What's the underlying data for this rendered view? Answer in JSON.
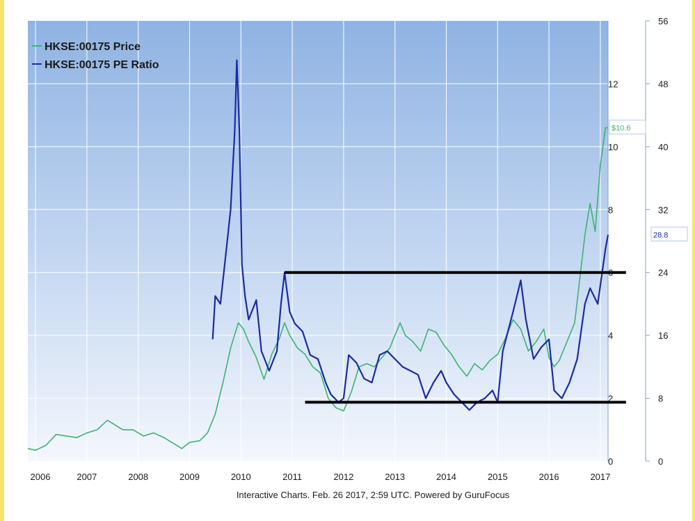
{
  "chart_data": {
    "type": "line",
    "x_ticks": [
      "2006",
      "2007",
      "2008",
      "2009",
      "2010",
      "2011",
      "2012",
      "2013",
      "2014",
      "2015",
      "2016",
      "2017"
    ],
    "inner_y_ticks": [
      "0",
      "2",
      "4",
      "6",
      "8",
      "10",
      "12"
    ],
    "right_y_ticks": [
      "0",
      "8",
      "16",
      "24",
      "32",
      "40",
      "48",
      "56"
    ],
    "price_ylim": [
      0,
      14
    ],
    "pe_ylim": [
      0,
      56
    ],
    "xlim": [
      2005.85,
      2017.15
    ],
    "grid": true,
    "legend_position": "top-left",
    "series": [
      {
        "name": "HKSE:00175 Price",
        "color": "#3cb371",
        "axis": "price",
        "x": [
          2005.85,
          2006.0,
          2006.2,
          2006.4,
          2006.6,
          2006.8,
          2007.0,
          2007.2,
          2007.4,
          2007.5,
          2007.7,
          2007.9,
          2008.1,
          2008.3,
          2008.5,
          2008.7,
          2008.85,
          2009.0,
          2009.2,
          2009.35,
          2009.5,
          2009.65,
          2009.8,
          2009.95,
          2010.05,
          2010.15,
          2010.3,
          2010.45,
          2010.6,
          2010.75,
          2010.85,
          2010.95,
          2011.1,
          2011.25,
          2011.4,
          2011.55,
          2011.7,
          2011.85,
          2012.0,
          2012.15,
          2012.3,
          2012.45,
          2012.6,
          2012.75,
          2012.9,
          2013.0,
          2013.1,
          2013.2,
          2013.35,
          2013.5,
          2013.65,
          2013.8,
          2013.95,
          2014.1,
          2014.25,
          2014.4,
          2014.55,
          2014.7,
          2014.85,
          2015.0,
          2015.15,
          2015.3,
          2015.45,
          2015.6,
          2015.75,
          2015.9,
          2016.0,
          2016.1,
          2016.2,
          2016.35,
          2016.5,
          2016.6,
          2016.7,
          2016.8,
          2016.9,
          2017.0,
          2017.1,
          2017.15
        ],
        "values": [
          0.4,
          0.35,
          0.5,
          0.85,
          0.8,
          0.75,
          0.9,
          1.0,
          1.3,
          1.2,
          1.0,
          1.0,
          0.8,
          0.9,
          0.75,
          0.55,
          0.4,
          0.6,
          0.65,
          0.9,
          1.5,
          2.5,
          3.6,
          4.4,
          4.2,
          3.8,
          3.3,
          2.6,
          3.4,
          3.9,
          4.4,
          4.0,
          3.6,
          3.4,
          3.0,
          2.8,
          2.0,
          1.7,
          1.6,
          2.2,
          3.0,
          3.1,
          3.0,
          3.3,
          3.6,
          4.0,
          4.4,
          4.0,
          3.8,
          3.5,
          4.2,
          4.1,
          3.7,
          3.4,
          3.0,
          2.7,
          3.1,
          2.9,
          3.2,
          3.4,
          3.9,
          4.5,
          4.2,
          3.5,
          3.8,
          4.2,
          3.3,
          3.0,
          3.2,
          3.8,
          4.4,
          5.8,
          7.2,
          8.2,
          7.3,
          9.4,
          10.6,
          10.6
        ]
      },
      {
        "name": "HKSE:00175 PE Ratio",
        "color": "#1a2aa8",
        "axis": "pe",
        "x": [
          2009.45,
          2009.5,
          2009.6,
          2009.7,
          2009.8,
          2009.88,
          2009.92,
          2009.97,
          2010.02,
          2010.08,
          2010.15,
          2010.3,
          2010.4,
          2010.55,
          2010.7,
          2010.78,
          2010.85,
          2010.95,
          2011.05,
          2011.2,
          2011.35,
          2011.5,
          2011.65,
          2011.75,
          2011.9,
          2012.0,
          2012.1,
          2012.25,
          2012.4,
          2012.55,
          2012.7,
          2012.85,
          2013.0,
          2013.15,
          2013.3,
          2013.45,
          2013.6,
          2013.75,
          2013.9,
          2014.0,
          2014.15,
          2014.3,
          2014.45,
          2014.6,
          2014.75,
          2014.9,
          2015.0,
          2015.1,
          2015.3,
          2015.45,
          2015.55,
          2015.7,
          2015.85,
          2016.0,
          2016.1,
          2016.25,
          2016.4,
          2016.55,
          2016.7,
          2016.8,
          2016.95,
          2017.1,
          2017.15
        ],
        "values": [
          15.5,
          21.0,
          20.0,
          26.0,
          32.0,
          42.0,
          51.0,
          42.0,
          25.0,
          21.0,
          18.0,
          20.5,
          14.0,
          11.5,
          14.0,
          20.0,
          24.0,
          19.0,
          17.5,
          16.5,
          13.5,
          13.0,
          10.0,
          8.5,
          7.5,
          8.0,
          13.5,
          12.5,
          10.5,
          10.0,
          13.5,
          14.0,
          13.0,
          12.0,
          11.5,
          11.0,
          8.0,
          10.0,
          11.5,
          10.0,
          8.5,
          7.5,
          6.5,
          7.5,
          8.0,
          9.0,
          7.5,
          14.0,
          19.0,
          23.0,
          18.0,
          13.0,
          14.5,
          15.5,
          9.0,
          8.0,
          10.0,
          13.0,
          20.0,
          22.0,
          20.0,
          27.0,
          28.8
        ]
      }
    ],
    "value_labels": [
      {
        "text": "$10.6",
        "color": "#3cb371",
        "axis": "price",
        "value": 10.6
      },
      {
        "text": "28.8",
        "color": "#1a2aa8",
        "axis": "pe",
        "value": 28.8
      }
    ],
    "reference_lines": [
      {
        "axis": "pe",
        "value": 24,
        "x_from": 2010.85,
        "x_to": 2017.5
      },
      {
        "axis": "pe",
        "value": 7.5,
        "x_from": 2011.25,
        "x_to": 2017.5
      }
    ],
    "footer": "Interactive Charts. Feb. 26 2017, 2:59 UTC. Powered by GuruFocus"
  }
}
